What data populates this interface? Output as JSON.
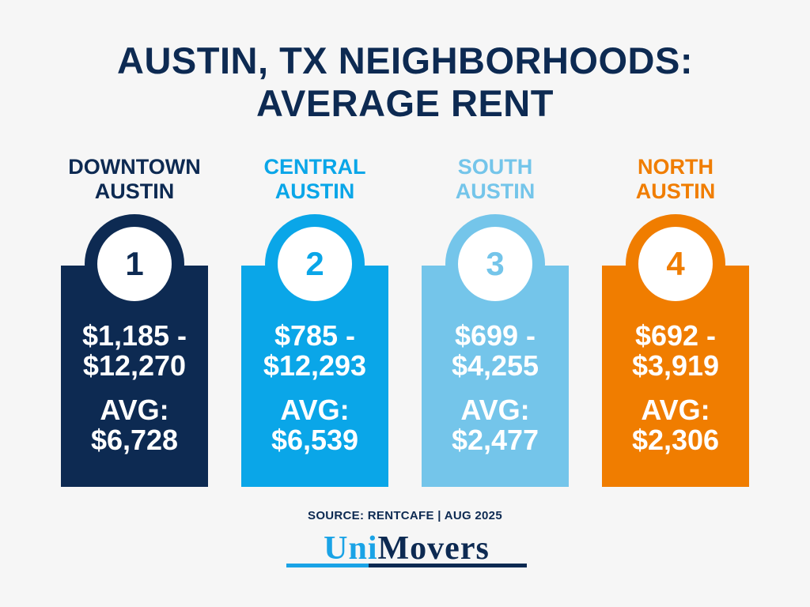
{
  "title": {
    "line1": "AUSTIN, TX NEIGHBORHOODS:",
    "line2": "AVERAGE RENT"
  },
  "neighborhoods": [
    {
      "name1": "DOWNTOWN",
      "name2": "AUSTIN",
      "rank": "1",
      "range1": "$1,185 -",
      "range2": "$12,270",
      "avg_label": "AVG:",
      "avg": "$6,728",
      "color": "#0d2a52",
      "name_color": "#0d2a52"
    },
    {
      "name1": "CENTRAL",
      "name2": "AUSTIN",
      "rank": "2",
      "range1": "$785 -",
      "range2": "$12,293",
      "avg_label": "AVG:",
      "avg": "$6,539",
      "color": "#0aa6e8",
      "name_color": "#0aa6e8"
    },
    {
      "name1": "SOUTH",
      "name2": "AUSTIN",
      "rank": "3",
      "range1": "$699 -",
      "range2": "$4,255",
      "avg_label": "AVG:",
      "avg": "$2,477",
      "color": "#74c5ea",
      "name_color": "#74c5ea"
    },
    {
      "name1": "NORTH",
      "name2": "AUSTIN",
      "rank": "4",
      "range1": "$692 -",
      "range2": "$3,919",
      "avg_label": "AVG:",
      "avg": "$2,306",
      "color": "#f07d00",
      "name_color": "#f07d00"
    }
  ],
  "source": "SOURCE: RENTCAFE | AUG 2025",
  "logo": {
    "part1": "Uni",
    "part2": "Movers"
  }
}
